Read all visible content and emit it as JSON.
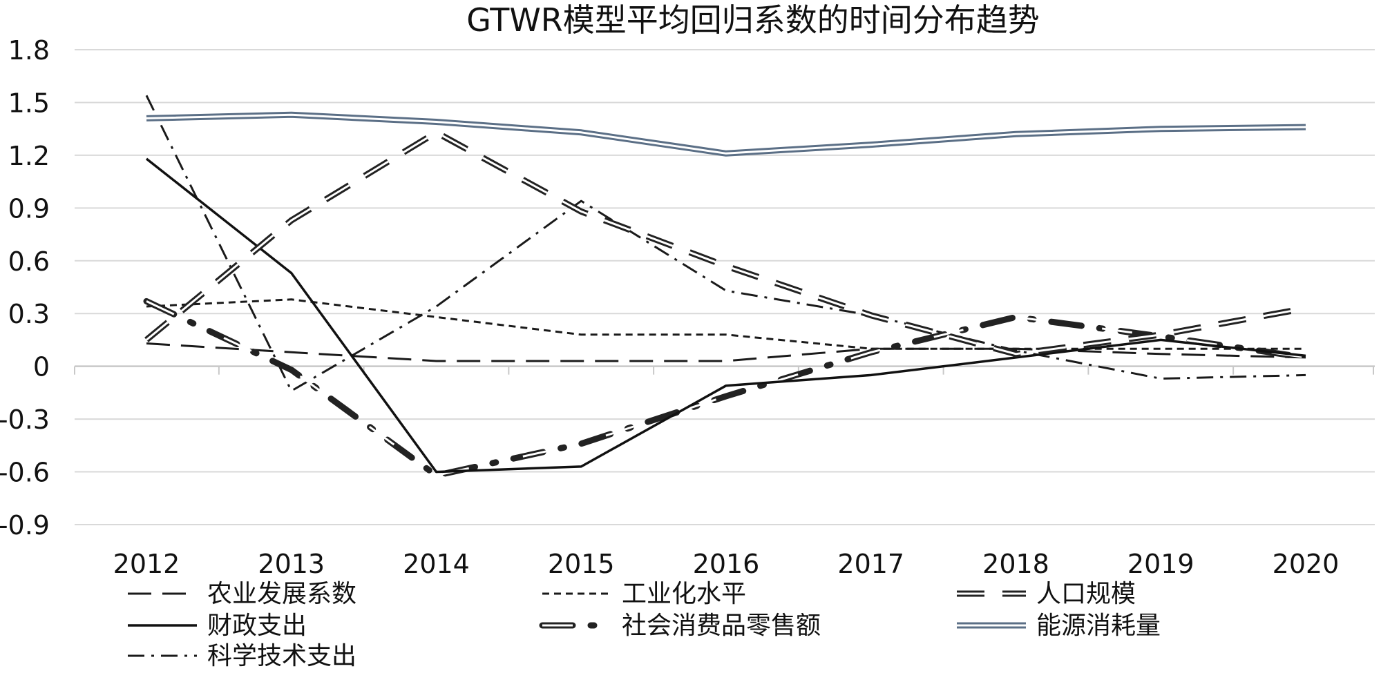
{
  "chart_data": {
    "type": "line",
    "title": "GTWR模型平均回归系数的时间分布趋势",
    "xlabel": "",
    "ylabel": "",
    "categories": [
      "2012",
      "2013",
      "2014",
      "2015",
      "2016",
      "2017",
      "2018",
      "2019",
      "2020"
    ],
    "yticks": [
      "1.8",
      "1.5",
      "1.2",
      "0.9",
      "0.6",
      "0.3",
      "0",
      "-0.3",
      "-0.6",
      "-0.9"
    ],
    "ylim": [
      -0.9,
      1.8
    ],
    "grid": true,
    "legend_position": "bottom",
    "series": [
      {
        "name": "农业发展系数",
        "style": "long-dash",
        "values": [
          0.13,
          0.08,
          0.03,
          0.03,
          0.03,
          0.1,
          0.1,
          0.07,
          0.05
        ]
      },
      {
        "name": "工业化水平",
        "style": "short-dash",
        "values": [
          0.34,
          0.38,
          0.28,
          0.18,
          0.18,
          0.1,
          0.1,
          0.1,
          0.1
        ]
      },
      {
        "name": "人口规模",
        "style": "double-dash",
        "values": [
          0.15,
          0.83,
          1.33,
          0.88,
          0.57,
          0.29,
          0.07,
          0.18,
          0.33
        ]
      },
      {
        "name": "财政支出",
        "style": "solid",
        "values": [
          1.18,
          0.53,
          -0.6,
          -0.57,
          -0.11,
          -0.05,
          0.05,
          0.15,
          0.06
        ]
      },
      {
        "name": "社会消费品零售额",
        "style": "double-dash-dot",
        "values": [
          0.37,
          -0.02,
          -0.62,
          -0.44,
          -0.17,
          0.08,
          0.28,
          0.17,
          0.05
        ]
      },
      {
        "name": "能源消耗量",
        "style": "double-solid",
        "values": [
          1.41,
          1.43,
          1.39,
          1.33,
          1.21,
          1.26,
          1.32,
          1.35,
          1.36
        ]
      },
      {
        "name": "科学技术支出",
        "style": "dash-dot",
        "values": [
          1.54,
          -0.14,
          0.34,
          0.94,
          0.43,
          0.29,
          0.09,
          -0.07,
          -0.05
        ]
      }
    ]
  }
}
